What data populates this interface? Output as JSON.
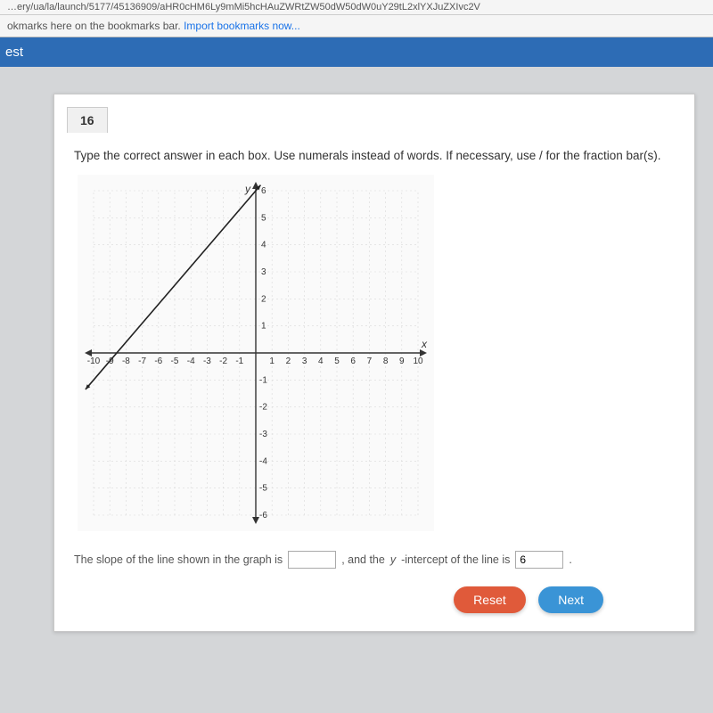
{
  "browser": {
    "url_fragment": "…ery/ua/la/launch/5177/45136909/aHR0cHM6Ly9mMi5hcHAuZWRtZW50dW50dW0uY29tL2xlYXJuZXIvc2V",
    "bookmarks_prefix": "okmarks here on the bookmarks bar. ",
    "bookmarks_link": "Import bookmarks now..."
  },
  "header": {
    "title_suffix": "est"
  },
  "question": {
    "number": "16",
    "instructions": "Type the correct answer in each box. Use numerals instead of words. If necessary, use / for the fraction bar(s).",
    "answer": {
      "pre": "The slope of the line shown in the graph is",
      "mid1": ", and the ",
      "mid_ital": "y",
      "mid2": "-intercept of the line is",
      "slope_value": "",
      "yint_value": "6",
      "post": "."
    }
  },
  "buttons": {
    "reset": "Reset",
    "next": "Next"
  },
  "chart": {
    "type": "line",
    "x_label": "x",
    "y_label": "y",
    "xlim": [
      -10,
      10
    ],
    "ylim": [
      -6,
      6
    ],
    "xtick_step": 1,
    "ytick_step": 1,
    "x_ticks_neg": [
      "-10",
      "-9",
      "-8",
      "-7",
      "-6",
      "-5",
      "-4",
      "-3",
      "-2",
      "-1"
    ],
    "x_ticks_pos": [
      "1",
      "2",
      "3",
      "4",
      "5",
      "6",
      "7",
      "8",
      "9",
      "10"
    ],
    "y_ticks_pos": [
      "1",
      "2",
      "3",
      "4",
      "5",
      "6"
    ],
    "y_ticks_neg": [
      "-1",
      "-2",
      "-3",
      "-4",
      "-5",
      "-6"
    ],
    "background": "#fafafa",
    "grid_color": "#d9d9d9",
    "axis_color": "#333333",
    "line_color": "#222222",
    "line_width": 1.6,
    "tick_fontsize": 10,
    "line_points": [
      [
        -10,
        -1
      ],
      [
        0,
        6
      ]
    ],
    "arrow_heads": true
  }
}
